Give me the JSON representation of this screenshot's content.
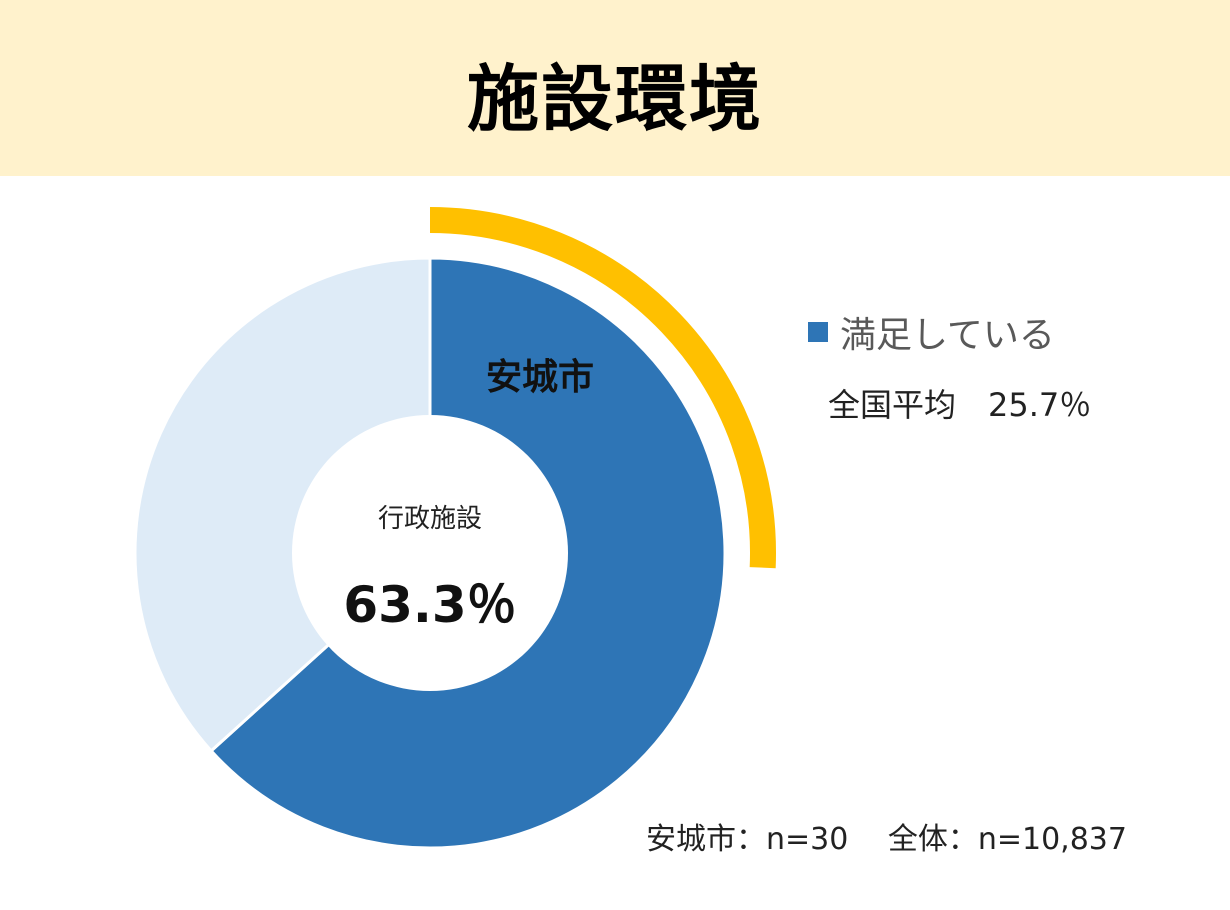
{
  "header": {
    "title": "施設環境"
  },
  "chart_data": {
    "type": "pie",
    "title": "施設環境",
    "center_category": "行政施設",
    "center_value": "63.3％",
    "city_label": "安城市",
    "series": [
      {
        "name": "満足している",
        "value": 63.3,
        "color": "#2e75b6"
      },
      {
        "value": 36.7,
        "color": "#deebf7"
      }
    ],
    "highlight_arc_value": 25.7,
    "highlight_arc_color": "#ffc000",
    "legend": [
      {
        "label": "満足している",
        "color": "#2e75b6"
      }
    ],
    "national_average_label": "全国平均　25.7％",
    "sample_size_label": "安城市：n=30　 全体：n=10,837"
  }
}
